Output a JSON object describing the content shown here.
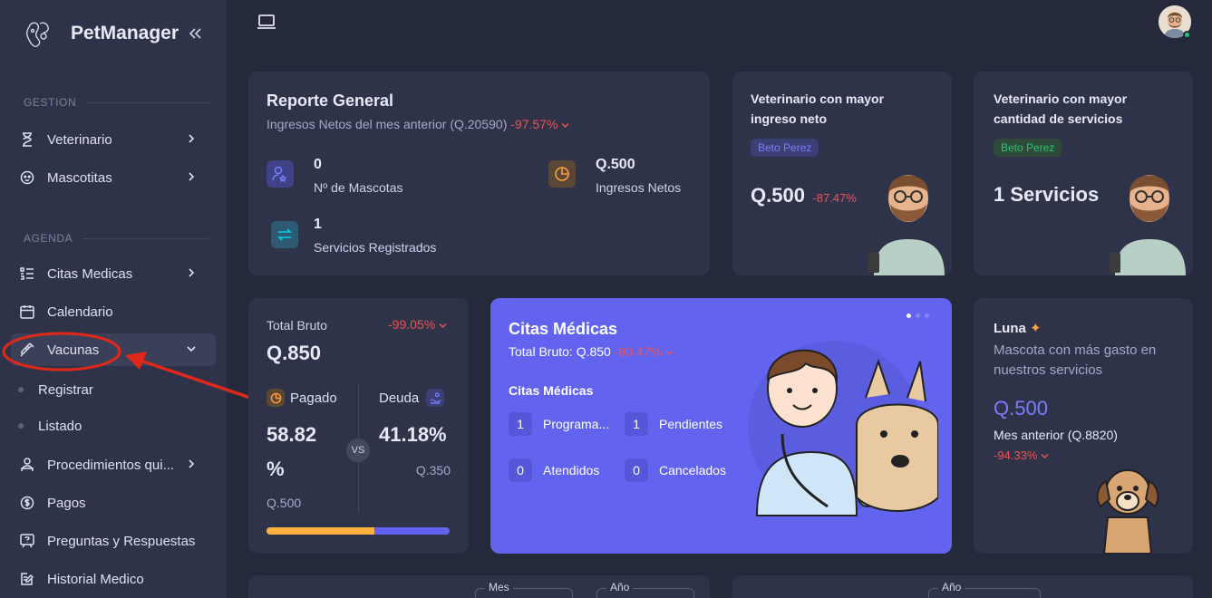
{
  "app": {
    "name": "PetManager"
  },
  "sidebar": {
    "sections": [
      {
        "title": "GESTION"
      },
      {
        "title": "AGENDA"
      }
    ],
    "items": {
      "veterinario": "Veterinario",
      "mascotitas": "Mascotitas",
      "citas": "Citas Medicas",
      "calendario": "Calendario",
      "vacunas": "Vacunas",
      "registrar": "Registrar",
      "listado": "Listado",
      "procedimientos": "Procedimientos qui...",
      "pagos": "Pagos",
      "preguntas": "Preguntas y Respuestas",
      "historial": "Historial Medico"
    }
  },
  "reporte": {
    "title": "Reporte General",
    "subtitle": "Ingresos Netos del mes anterior (Q.20590)",
    "change": "-97.57%",
    "mascotas_value": "0",
    "mascotas_label": "Nº de Mascotas",
    "ingresos_value": "Q.500",
    "ingresos_label": "Ingresos Netos",
    "servicios_value": "1",
    "servicios_label": "Servicios Registrados"
  },
  "vet_ingreso": {
    "title_line1": "Veterinario con mayor",
    "title_line2": "ingreso neto",
    "badge": "Beto Perez",
    "value": "Q.500",
    "change": "-87.47%"
  },
  "vet_servicios": {
    "title_line1": "Veterinario con mayor",
    "title_line2": "cantidad de servicios",
    "badge": "Beto Perez",
    "value": "1 Servicios"
  },
  "total_bruto": {
    "label": "Total Bruto",
    "change": "-99.05%",
    "value": "Q.850",
    "pagado_label": "Pagado",
    "pagado_percent_line1": "58.82",
    "pagado_percent_line2": "%",
    "pagado_amount": "Q.500",
    "vs": "VS",
    "deuda_label": "Deuda",
    "deuda_percent": "41.18%",
    "deuda_amount": "Q.350",
    "progress_paid_fraction": 0.5882
  },
  "citas": {
    "title": "Citas Médicas",
    "total_label": "Total Bruto: Q.850",
    "change": "-90.47%",
    "section": "Citas Médicas",
    "programadas_value": "1",
    "programadas_label": "Programa...",
    "pendientes_value": "1",
    "pendientes_label": "Pendientes",
    "atendidos_value": "0",
    "atendidos_label": "Atendidos",
    "cancelados_value": "0",
    "cancelados_label": "Cancelados"
  },
  "mascota": {
    "name": "Luna",
    "desc_line1": "Mascota con más gasto en",
    "desc_line2": "nuestros servicios",
    "value": "Q.500",
    "previous": "Mes anterior (Q.8820)",
    "change": "-94.33%"
  },
  "bottom": {
    "mes": "Mes",
    "anio1": "Año",
    "anio2": "Año"
  },
  "colors": {
    "accent": "#6264f0",
    "negative": "#ea5455",
    "warning": "#ff9f43",
    "success": "#28c76f"
  }
}
